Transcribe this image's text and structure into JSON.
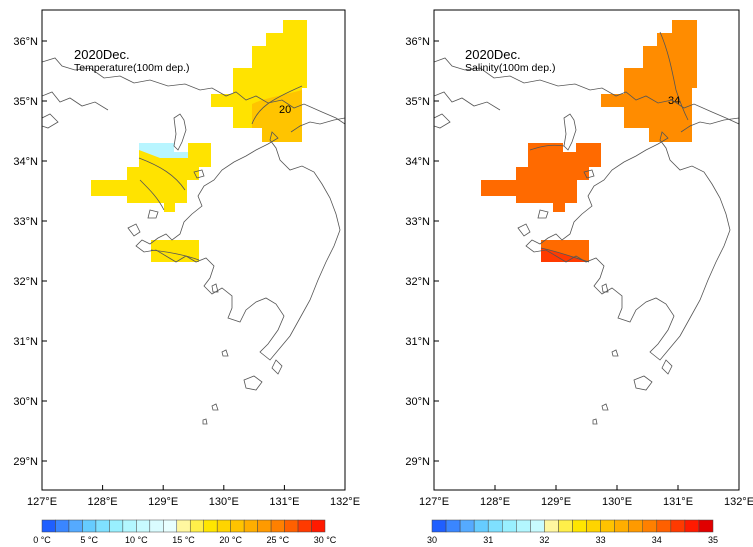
{
  "panels": [
    {
      "id": "temperature",
      "title": "2020Dec.",
      "subtitle": "Temperature(100m dep.)",
      "contour_label": "20",
      "lat_labels": [
        "36°N",
        "35°N",
        "34°N",
        "33°N",
        "32°N",
        "31°N",
        "30°N",
        "29°N"
      ],
      "lon_labels": [
        "127°E",
        "128°E",
        "129°E",
        "130°E",
        "131°E",
        "132°E"
      ],
      "colorbar": {
        "labels": [
          "0 °C",
          "5 °C",
          "10 °C",
          "15 °C",
          "20 °C",
          "25 °C",
          "30 °C"
        ],
        "colors": [
          "#1f5fff",
          "#3a86ff",
          "#55aaff",
          "#66ccff",
          "#7fe0ff",
          "#99f0ff",
          "#b3f7ff",
          "#c8fbff",
          "#dafcff",
          "#e8ffff",
          "#fff7a0",
          "#ffef4a",
          "#ffe600",
          "#ffd400",
          "#ffc300",
          "#ffae00",
          "#ff9a00",
          "#ff8000",
          "#ff6000",
          "#ff3a00",
          "#ff1a00"
        ]
      }
    },
    {
      "id": "salinity",
      "title": "2020Dec.",
      "subtitle": "Salinity(100m dep.)",
      "contour_label": "34",
      "lat_labels": [
        "36°N",
        "35°N",
        "34°N",
        "33°N",
        "32°N",
        "31°N",
        "30°N",
        "29°N"
      ],
      "lon_labels": [
        "127°E",
        "128°E",
        "129°E",
        "130°E",
        "131°E",
        "132°E"
      ],
      "colorbar": {
        "labels": [
          "30",
          "31",
          "32",
          "33",
          "34",
          "35"
        ],
        "colors": [
          "#1f5fff",
          "#3a86ff",
          "#55aaff",
          "#66ccff",
          "#7fe0ff",
          "#99f0ff",
          "#b3f7ff",
          "#c8fbff",
          "#fff7a0",
          "#ffef4a",
          "#ffe600",
          "#ffd400",
          "#ffc300",
          "#ffae00",
          "#ff9a00",
          "#ff8000",
          "#ff6000",
          "#ff3a00",
          "#ff1a00",
          "#e00000"
        ]
      }
    }
  ],
  "fill_colors": {
    "temperature_main": "#ffe300",
    "temperature_warm": "#ffc400",
    "temperature_cool": "#b8f5ff",
    "salinity_main": "#ff8c00",
    "salinity_west": "#ff6a00",
    "salinity_south": "#ff3a00"
  }
}
